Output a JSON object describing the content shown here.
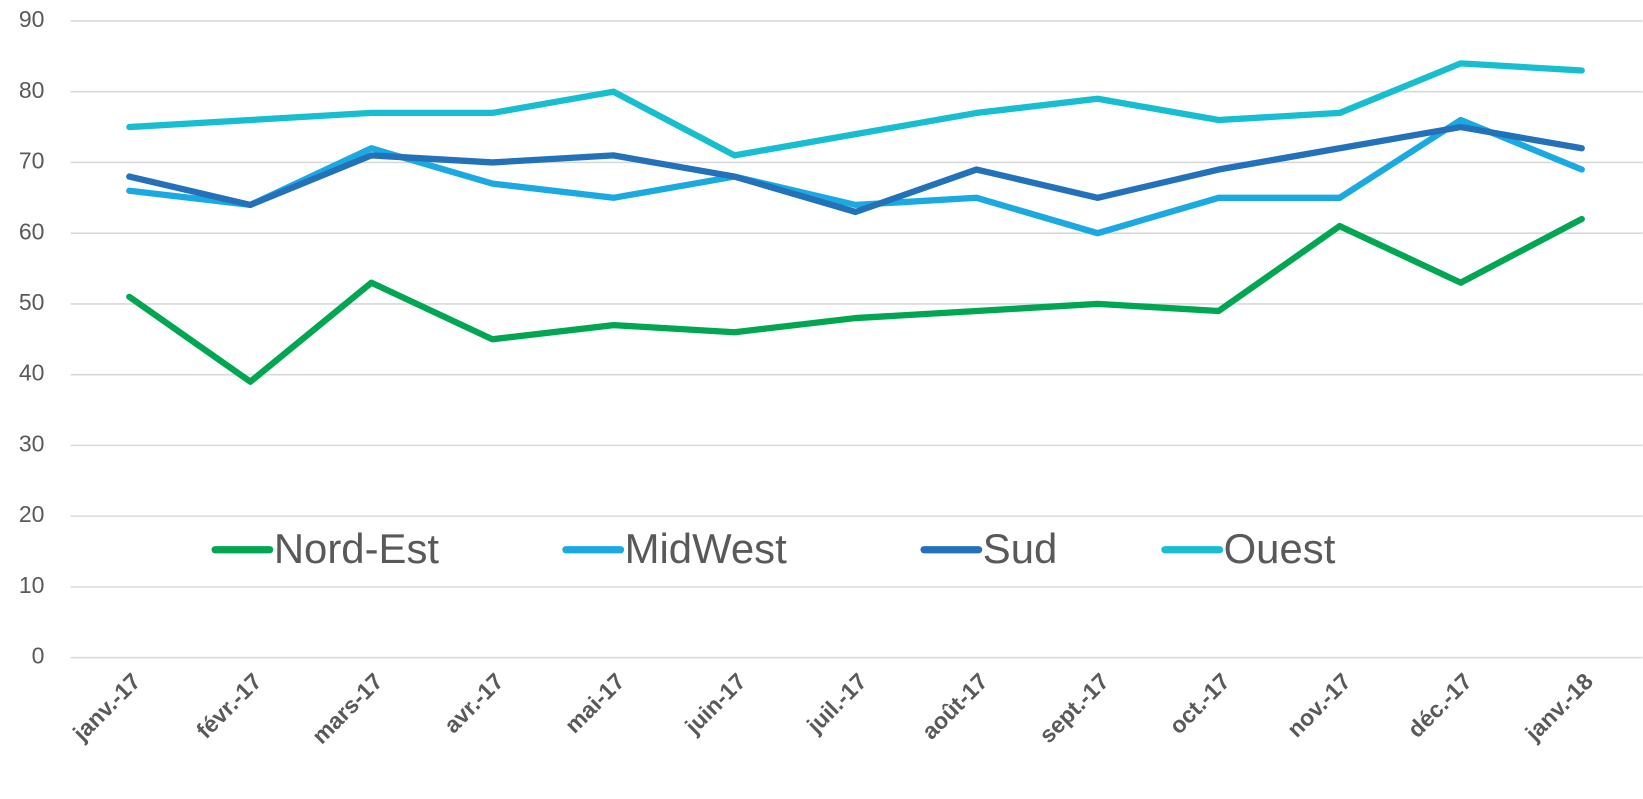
{
  "chart_data": {
    "type": "line",
    "categories": [
      "janv.-17",
      "févr.-17",
      "mars-17",
      "avr.-17",
      "mai-17",
      "juin-17",
      "juil.-17",
      "août-17",
      "sept.-17",
      "oct.-17",
      "nov.-17",
      "déc.-17",
      "janv.-18"
    ],
    "series": [
      {
        "name": "Nord-Est",
        "color": "#00a651",
        "values": [
          51,
          39,
          53,
          45,
          47,
          46,
          48,
          49,
          50,
          49,
          61,
          53,
          62
        ]
      },
      {
        "name": "MidWest",
        "color": "#1ba9e1",
        "values": [
          66,
          64,
          72,
          67,
          65,
          68,
          64,
          65,
          60,
          65,
          65,
          76,
          69
        ]
      },
      {
        "name": "Sud",
        "color": "#2271b9",
        "values": [
          68,
          64,
          71,
          70,
          71,
          68,
          63,
          69,
          65,
          69,
          72,
          75,
          72
        ]
      },
      {
        "name": "Ouest",
        "color": "#17becf",
        "values": [
          75,
          76,
          77,
          77,
          80,
          71,
          74,
          77,
          79,
          76,
          77,
          84,
          83
        ]
      }
    ],
    "ylim": [
      0,
      90
    ],
    "yticks": [
      0,
      10,
      20,
      30,
      40,
      50,
      60,
      70,
      80,
      90
    ],
    "grid": true
  }
}
